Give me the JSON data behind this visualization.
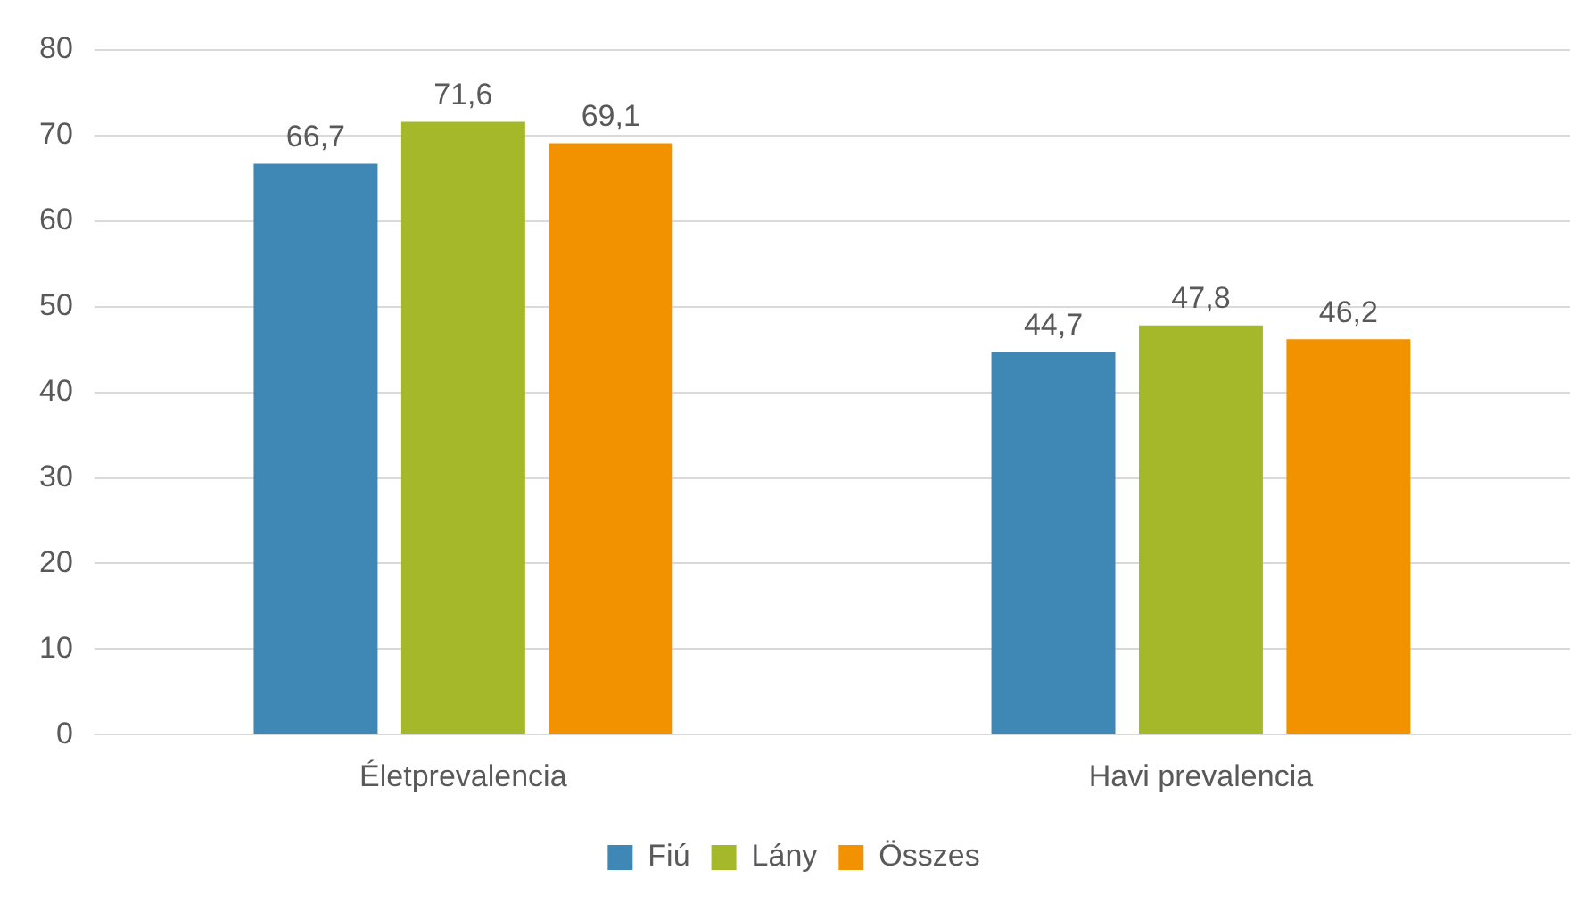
{
  "chart_data": {
    "type": "bar",
    "categories": [
      "Életprevalencia",
      "Havi prevalencia"
    ],
    "series": [
      {
        "name": "Fiú",
        "color": "#3f87b5",
        "values": [
          66.7,
          44.7
        ],
        "value_labels": [
          "66,7",
          "44,7"
        ]
      },
      {
        "name": "Lány",
        "color": "#a5b82a",
        "values": [
          71.6,
          47.8
        ],
        "value_labels": [
          "71,6",
          "47,8"
        ]
      },
      {
        "name": "Összes",
        "color": "#f39200",
        "values": [
          69.1,
          46.2
        ],
        "value_labels": [
          "69,1",
          "46,2"
        ]
      }
    ],
    "ylim": [
      0,
      80
    ],
    "yticks": [
      0,
      10,
      20,
      30,
      40,
      50,
      60,
      70,
      80
    ],
    "grid": "y",
    "legend": "bottom"
  }
}
